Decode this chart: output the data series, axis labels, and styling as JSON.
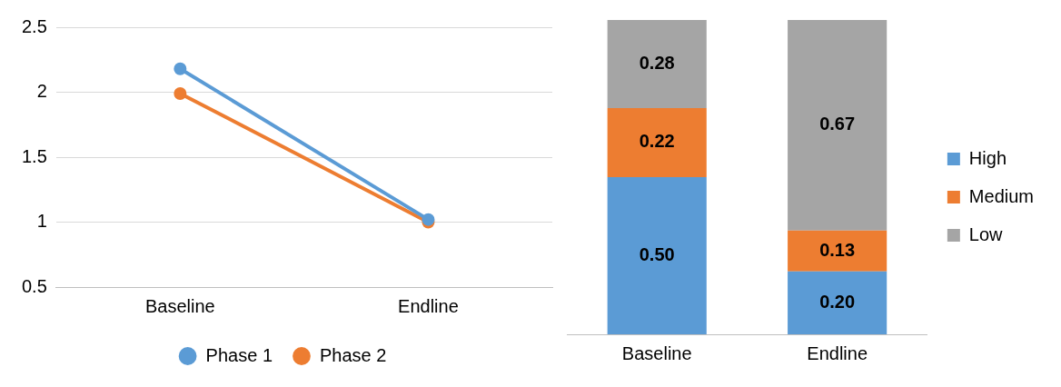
{
  "chart_data": [
    {
      "type": "line",
      "categories": [
        "Baseline",
        "Endline"
      ],
      "series": [
        {
          "name": "Phase 1",
          "color": "#5b9bd5",
          "values": [
            2.18,
            1.02
          ]
        },
        {
          "name": "Phase 2",
          "color": "#ed7d31",
          "values": [
            1.99,
            1.0
          ]
        }
      ],
      "ylim": [
        0.5,
        2.5
      ],
      "yticks": [
        0.5,
        1,
        1.5,
        2,
        2.5
      ],
      "grid": "y",
      "legend": "bottom",
      "marker": "circle",
      "line_style": "solid"
    },
    {
      "type": "bar",
      "stacked": true,
      "ylim": [
        0,
        1
      ],
      "tick_labels": "x",
      "categories": [
        "Baseline",
        "Endline"
      ],
      "series": [
        {
          "name": "High",
          "color": "#5b9bd5",
          "values": [
            0.5,
            0.2
          ],
          "value_labels": [
            "0.50",
            "0.20"
          ]
        },
        {
          "name": "Medium",
          "color": "#ed7d31",
          "values": [
            0.22,
            0.13
          ],
          "value_labels": [
            "0.22",
            "0.13"
          ]
        },
        {
          "name": "Low",
          "color": "#a5a5a5",
          "values": [
            0.28,
            0.67
          ],
          "value_labels": [
            "0.28",
            "0.67"
          ]
        }
      ],
      "legend": "right",
      "grid": false
    }
  ]
}
